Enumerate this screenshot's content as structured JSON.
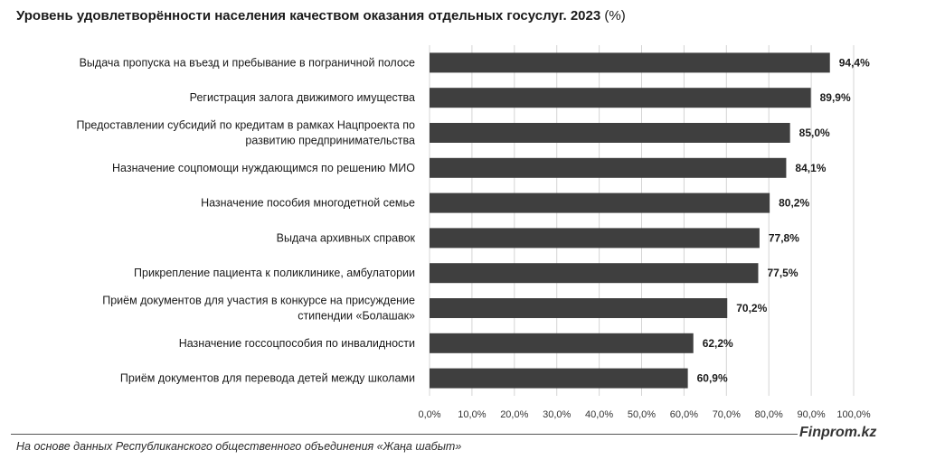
{
  "chart_data": {
    "type": "bar",
    "orientation": "horizontal",
    "title": "Уровень удовлетворённости населения качеством оказания отдельных госуслуг. 2023",
    "title_unit": "(%)",
    "categories": [
      [
        "Выдача пропуска на въезд и пребывание в пограничной полосе"
      ],
      [
        "Регистрация залога движимого имущества"
      ],
      [
        "Предоставлении субсидий по кредитам в рамках Нацпроекта по",
        "развитию предпринимательства"
      ],
      [
        "Назначение соцпомощи нуждающимся по решению МИО"
      ],
      [
        "Назначение пособия многодетной семье"
      ],
      [
        "Выдача архивных справок"
      ],
      [
        "Прикрепление пациента к поликлинике, амбулатории"
      ],
      [
        "Приём документов для участия в конкурсе на присуждение",
        "стипендии «Болашак»"
      ],
      [
        "Назначение госсоцпособия по инвалидности"
      ],
      [
        "Приём документов для перевода детей между школами"
      ]
    ],
    "values": [
      94.4,
      89.9,
      85.0,
      84.1,
      80.2,
      77.8,
      77.5,
      70.2,
      62.2,
      60.9
    ],
    "value_labels": [
      "94,4%",
      "89,9%",
      "85,0%",
      "84,1%",
      "80,2%",
      "77,8%",
      "77,5%",
      "70,2%",
      "62,2%",
      "60,9%"
    ],
    "xlim": [
      0,
      100
    ],
    "xticks": [
      0,
      10,
      20,
      30,
      40,
      50,
      60,
      70,
      80,
      90,
      100
    ],
    "xtick_labels": [
      "0,0%",
      "10,0%",
      "20,0%",
      "30,0%",
      "40,0%",
      "50,0%",
      "60,0%",
      "70,0%",
      "80,0%",
      "90,0%",
      "100,0%"
    ],
    "grid": true,
    "bar_color": "#3f3f3f",
    "grid_color": "#d4d4d4"
  },
  "brand": "Finprom.kz",
  "source": "На основе данных Республиканского общественного объединения «Жаңа шабыт»"
}
